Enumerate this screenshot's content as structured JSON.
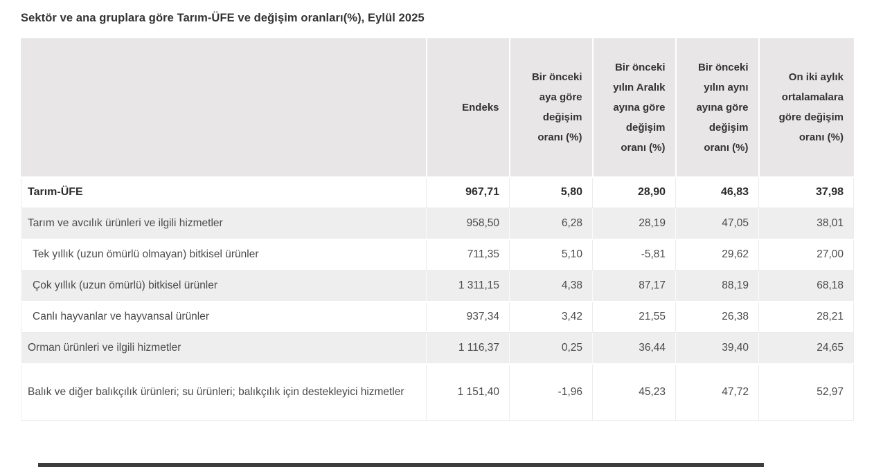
{
  "title": "Sektör ve ana gruplara göre Tarım-ÜFE ve değişim oranları(%), Eylül 2025",
  "chart_data": {
    "type": "table",
    "title": "Sektör ve ana gruplara göre Tarım-ÜFE ve değişim oranları(%), Eylül 2025",
    "columns": [
      "",
      "Endeks",
      "Bir önceki aya göre değişim oranı (%)",
      "Bir önceki yılın Aralık ayına göre değişim oranı (%)",
      "Bir önceki yılın aynı ayına göre değişim oranı (%)",
      "On iki aylık ortalamalara göre değişim oranı (%)"
    ],
    "rows": [
      {
        "label": "Tarım-ÜFE",
        "level": 0,
        "values": [
          "967,71",
          "5,80",
          "28,90",
          "46,83",
          "37,98"
        ]
      },
      {
        "label": "Tarım ve avcılık ürünleri ve ilgili hizmetler",
        "level": 1,
        "values": [
          "958,50",
          "6,28",
          "28,19",
          "47,05",
          "38,01"
        ]
      },
      {
        "label": "Tek yıllık (uzun ömürlü olmayan) bitkisel ürünler",
        "level": 2,
        "values": [
          "711,35",
          "5,10",
          "-5,81",
          "29,62",
          "27,00"
        ]
      },
      {
        "label": "Çok yıllık (uzun ömürlü) bitkisel ürünler",
        "level": 2,
        "values": [
          "1 311,15",
          "4,38",
          "87,17",
          "88,19",
          "68,18"
        ]
      },
      {
        "label": "Canlı hayvanlar ve hayvansal ürünler",
        "level": 2,
        "values": [
          "937,34",
          "3,42",
          "21,55",
          "26,38",
          "28,21"
        ]
      },
      {
        "label": "Orman ürünleri ve ilgili hizmetler",
        "level": 1,
        "values": [
          "1 116,37",
          "0,25",
          "36,44",
          "39,40",
          "24,65"
        ]
      },
      {
        "label": "Balık ve diğer balıkçılık ürünleri; su ürünleri; balıkçılık için destekleyici hizmetler",
        "level": 1,
        "values": [
          "1 151,40",
          "-1,96",
          "45,23",
          "47,72",
          "52,97"
        ]
      }
    ]
  },
  "colors": {
    "header_bg": "#e8e6e6",
    "shaded_row_bg": "#efeeee",
    "title_text": "#333333",
    "body_text": "#4a4a4a",
    "bold_text": "#2b2b2b",
    "border": "#ececec",
    "bottom_bar": "#3d3d3d"
  }
}
